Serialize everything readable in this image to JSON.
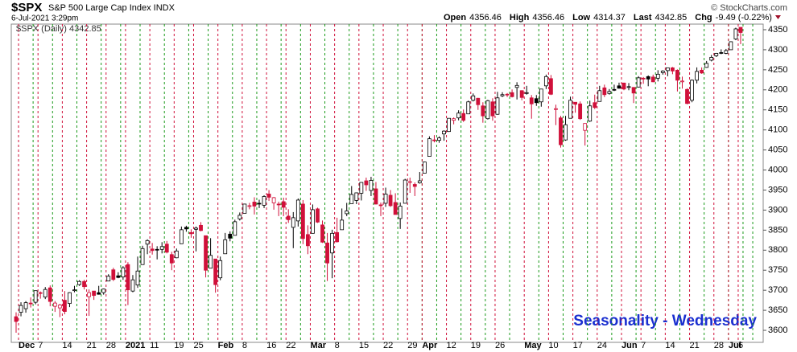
{
  "chart_data": {
    "type": "candlestick",
    "title": "$SPX",
    "subtitle": "S&P 500 Large Cap Index INDX",
    "date": "6-Jul-2021 3:29pm",
    "source": "© StockCharts.com",
    "quote": [
      {
        "label": "Open",
        "value": 4356.46
      },
      {
        "label": "High",
        "value": 4356.46
      },
      {
        "label": "Low",
        "value": 4314.37
      },
      {
        "label": "Last",
        "value": 4342.85
      },
      {
        "label": "Chg",
        "value": "-9.49 (-0.22%)"
      }
    ],
    "legend": "$SPX (Daily) 4342.85",
    "annotation": "Seasonality - Wednesday",
    "up_color": "#000000",
    "down_color": "#d0103a",
    "ylim": [
      3570,
      4364
    ],
    "yticks": [
      3600,
      3650,
      3700,
      3750,
      3800,
      3850,
      3900,
      3950,
      4000,
      4050,
      4100,
      4150,
      4200,
      4250,
      4300,
      4350
    ],
    "xticks": [
      {
        "value": 1,
        "label": "Dec"
      },
      {
        "value": 5,
        "label": "7"
      },
      {
        "value": 10,
        "label": "14"
      },
      {
        "value": 15,
        "label": "21"
      },
      {
        "value": 19,
        "label": "28"
      },
      {
        "value": 23,
        "label": "2021"
      },
      {
        "value": 28,
        "label": "11"
      },
      {
        "value": 33,
        "label": "19"
      },
      {
        "value": 37,
        "label": "25"
      },
      {
        "value": 42,
        "label": "Feb"
      },
      {
        "value": 47,
        "label": "8"
      },
      {
        "value": 52,
        "label": "16"
      },
      {
        "value": 56,
        "label": "22"
      },
      {
        "value": 61,
        "label": "Mar"
      },
      {
        "value": 66,
        "label": "8"
      },
      {
        "value": 71,
        "label": "15"
      },
      {
        "value": 76,
        "label": "22"
      },
      {
        "value": 81,
        "label": "29"
      },
      {
        "value": 84,
        "label": "Apr"
      },
      {
        "value": 89,
        "label": "12"
      },
      {
        "value": 94,
        "label": "19"
      },
      {
        "value": 99,
        "label": "26"
      },
      {
        "value": 105,
        "label": "May"
      },
      {
        "value": 110,
        "label": "10"
      },
      {
        "value": 115,
        "label": "17"
      },
      {
        "value": 120,
        "label": "24"
      },
      {
        "value": 125,
        "label": "Jun"
      },
      {
        "value": 129,
        "label": "7"
      },
      {
        "value": 134,
        "label": "14"
      },
      {
        "value": 139,
        "label": "21"
      },
      {
        "value": 144,
        "label": "28"
      },
      {
        "value": 147,
        "label": "Jul"
      },
      {
        "value": 149,
        "label": "6"
      }
    ],
    "open": [
      3634,
      3645,
      3654,
      3668,
      3670,
      3694,
      3683,
      3706,
      3660,
      3656,
      3675,
      3667,
      3700,
      3714,
      3722,
      3684,
      3698,
      3694,
      3694,
      3723,
      3751,
      3736,
      3733,
      3764,
      3698,
      3713,
      3764,
      3815,
      3803,
      3802,
      3802,
      3815,
      3789,
      3781,
      3816,
      3857,
      3844,
      3852,
      3862,
      3836,
      3755,
      3778,
      3731,
      3791,
      3840,
      3837,
      3878,
      3892,
      3910,
      3920,
      3917,
      3912,
      3940,
      3918,
      3915,
      3921,
      3885,
      3857,
      3873,
      3915,
      3839,
      3842,
      3903,
      3863,
      3818,
      3793,
      3844,
      3851,
      3891,
      3916,
      3924,
      3942,
      3973,
      3949,
      3953,
      3913,
      3917,
      3937,
      3919,
      3879,
      3917,
      3969,
      3964,
      3968,
      3992,
      4034,
      4075,
      4074,
      4090,
      4096,
      4124,
      4130,
      4141,
      4140,
      4174,
      4179,
      4160,
      4128,
      4170,
      4139,
      4185,
      4189,
      4193,
      4206,
      4198,
      4192,
      4180,
      4178,
      4170,
      4210,
      4228,
      4151,
      4130,
      4075,
      4129,
      4169,
      4165,
      4099,
      4122,
      4168,
      4171,
      4205,
      4191,
      4201,
      4210,
      4217,
      4207,
      4206,
      4207,
      4229,
      4233,
      4232,
      4229,
      4243,
      4248,
      4255,
      4249,
      4220,
      4201,
      4174,
      4224,
      4249,
      4256,
      4274,
      4285,
      4293,
      4291,
      4300,
      4327,
      4356
    ],
    "high": [
      3645,
      3670,
      3673,
      3682,
      3699,
      3697,
      3708,
      3712,
      3673,
      3666,
      3698,
      3695,
      3711,
      3725,
      3726,
      3702,
      3698,
      3711,
      3704,
      3740,
      3756,
      3745,
      3760,
      3770,
      3738,
      3784,
      3811,
      3827,
      3818,
      3810,
      3820,
      3823,
      3796,
      3804,
      3859,
      3861,
      3852,
      3859,
      3870,
      3836,
      3830,
      3778,
      3784,
      3843,
      3847,
      3876,
      3894,
      3916,
      3918,
      3932,
      3926,
      3937,
      3950,
      3933,
      3921,
      3931,
      3902,
      3895,
      3929,
      3925,
      3862,
      3914,
      3906,
      3874,
      3843,
      3851,
      3881,
      3904,
      3918,
      3960,
      3944,
      3970,
      3981,
      3983,
      3970,
      3919,
      3956,
      3950,
      3942,
      3919,
      3978,
      3981,
      3969,
      3995,
      4021,
      4084,
      4087,
      4084,
      4099,
      4129,
      4131,
      4149,
      4151,
      4173,
      4191,
      4180,
      4169,
      4175,
      4179,
      4195,
      4194,
      4192,
      4201,
      4219,
      4199,
      4210,
      4187,
      4187,
      4202,
      4238,
      4237,
      4163,
      4135,
      4135,
      4183,
      4169,
      4171,
      4117,
      4173,
      4188,
      4210,
      4213,
      4202,
      4213,
      4218,
      4218,
      4217,
      4207,
      4234,
      4232,
      4236,
      4238,
      4249,
      4249,
      4255,
      4257,
      4251,
      4233,
      4204,
      4226,
      4256,
      4256,
      4272,
      4287,
      4292,
      4301,
      4302,
      4321,
      4355,
      4356
    ],
    "low": [
      3594,
      3635,
      3644,
      3657,
      3665,
      3679,
      3678,
      3660,
      3646,
      3633,
      3640,
      3658,
      3695,
      3711,
      3702,
      3636,
      3676,
      3689,
      3689,
      3723,
      3723,
      3730,
      3726,
      3663,
      3695,
      3706,
      3764,
      3790,
      3789,
      3777,
      3792,
      3792,
      3750,
      3780,
      3816,
      3846,
      3831,
      3797,
      3847,
      3732,
      3755,
      3694,
      3725,
      3791,
      3822,
      3837,
      3874,
      3892,
      3902,
      3889,
      3905,
      3905,
      3923,
      3901,
      3885,
      3885,
      3868,
      3805,
      3859,
      3815,
      3790,
      3842,
      3868,
      3818,
      3723,
      3730,
      3819,
      3851,
      3885,
      3916,
      3915,
      3924,
      3948,
      3935,
      3914,
      3885,
      3908,
      3908,
      3889,
      3853,
      3917,
      3943,
      3935,
      3966,
      3992,
      4034,
      4069,
      4068,
      4073,
      4095,
      4114,
      4124,
      4120,
      4140,
      4171,
      4150,
      4118,
      4126,
      4123,
      4138,
      4182,
      4182,
      4181,
      4176,
      4174,
      4188,
      4128,
      4160,
      4158,
      4202,
      4187,
      4112,
      4056,
      4073,
      4129,
      4143,
      4125,
      4061,
      4120,
      4152,
      4171,
      4182,
      4188,
      4197,
      4203,
      4199,
      4199,
      4167,
      4206,
      4215,
      4209,
      4219,
      4221,
      4238,
      4234,
      4239,
      4196,
      4203,
      4164,
      4169,
      4216,
      4240,
      4255,
      4271,
      4282,
      4289,
      4289,
      4300,
      4324,
      4314
    ],
    "close": [
      3622,
      3662,
      3669,
      3666,
      3699,
      3692,
      3702,
      3672,
      3668,
      3663,
      3647,
      3694,
      3701,
      3722,
      3709,
      3694,
      3687,
      3690,
      3703,
      3735,
      3727,
      3732,
      3756,
      3701,
      3726,
      3748,
      3804,
      3824,
      3799,
      3801,
      3809,
      3795,
      3768,
      3798,
      3851,
      3853,
      3841,
      3855,
      3849,
      3750,
      3787,
      3714,
      3774,
      3826,
      3830,
      3871,
      3887,
      3915,
      3911,
      3910,
      3916,
      3934,
      3932,
      3931,
      3913,
      3907,
      3876,
      3881,
      3925,
      3829,
      3811,
      3901,
      3870,
      3820,
      3768,
      3842,
      3821,
      3875,
      3898,
      3939,
      3943,
      3969,
      3963,
      3974,
      3915,
      3913,
      3940,
      3911,
      3889,
      3910,
      3975,
      3971,
      3959,
      3973,
      4020,
      4078,
      4074,
      4080,
      4097,
      4129,
      4128,
      4142,
      4124,
      4170,
      4185,
      4163,
      4135,
      4173,
      4135,
      4180,
      4188,
      4187,
      4183,
      4211,
      4181,
      4193,
      4165,
      4168,
      4202,
      4233,
      4189,
      4153,
      4063,
      4113,
      4174,
      4164,
      4128,
      4116,
      4160,
      4156,
      4198,
      4188,
      4196,
      4201,
      4204,
      4202,
      4208,
      4192,
      4230,
      4227,
      4227,
      4220,
      4239,
      4247,
      4255,
      4247,
      4224,
      4222,
      4166,
      4224,
      4246,
      4242,
      4266,
      4281,
      4291,
      4291,
      4298,
      4320,
      4352,
      4343
    ]
  }
}
